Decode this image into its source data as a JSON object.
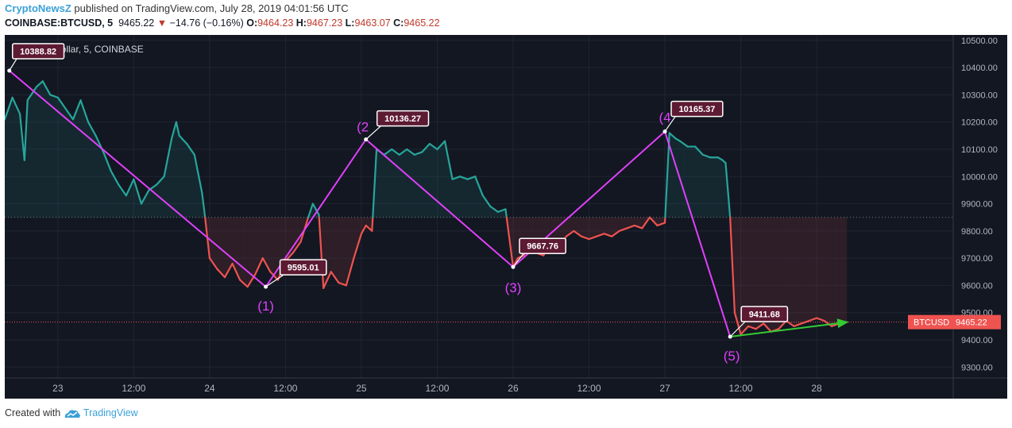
{
  "header": {
    "publisher": "CryptoNewsZ",
    "published_text": "published on TradingView.com, July 28, 2019 04:01:56 UTC",
    "symbol": "COINBASE:BTCUSD, 5",
    "last": "9465.22",
    "change": "−14.76 (−0.16%)",
    "o_label": "O:",
    "o_value": "9464.23",
    "h_label": "H:",
    "h_value": "9467.23",
    "l_label": "L:",
    "l_value": "9463.07",
    "c_label": "C:",
    "c_value": "9465.22"
  },
  "footer": {
    "created_with": "Created with",
    "brand": "TradingView"
  },
  "chart_data": {
    "type": "area",
    "legend_text": "BTC/U.S. Dollar, 5, COINBASE",
    "ylim": [
      9260,
      10520
    ],
    "y_ticks": [
      9300,
      9400,
      9500,
      9600,
      9700,
      9800,
      9900,
      10000,
      10100,
      10200,
      10300,
      10400,
      10500
    ],
    "y_tick_labels": [
      "9300.00",
      "9400.00",
      "9500.00",
      "9600.00",
      "9700.00",
      "9800.00",
      "9900.00",
      "10000.00",
      "10100.00",
      "10200.00",
      "10300.00",
      "10400.00",
      "10500.00"
    ],
    "x_ticks": [
      23,
      23.5,
      24,
      24.5,
      25,
      25.5,
      26,
      26.5,
      27,
      27.5,
      28
    ],
    "x_tick_labels": [
      "23",
      "12:00",
      "24",
      "12:00",
      "25",
      "12:00",
      "26",
      "12:00",
      "27",
      "12:00",
      "28"
    ],
    "baseline": 9850,
    "current_price": 9465.22,
    "current_label": "BTCUSD",
    "current_value_label": "9465.22",
    "colors": {
      "up": "#26a69a",
      "down": "#ef5350",
      "wave": "#e040fb",
      "trend": "#33cc33",
      "callout": "#5d1a33"
    },
    "series": [
      {
        "x": [
          22.63,
          22.65,
          22.7,
          22.75,
          22.78,
          22.8,
          22.86,
          22.9,
          22.95,
          23.0,
          23.05,
          23.1,
          23.15,
          23.2,
          23.25,
          23.3,
          23.35,
          23.4,
          23.45,
          23.5,
          23.55,
          23.6,
          23.65,
          23.7,
          23.75,
          23.78,
          23.8,
          23.85,
          23.9,
          23.95,
          23.97,
          24.0,
          24.05,
          24.1,
          24.15,
          24.2,
          24.25,
          24.3,
          24.35,
          24.4,
          24.45,
          24.5,
          24.55,
          24.6,
          24.65,
          24.68,
          24.72,
          24.75,
          24.8,
          24.85,
          24.9,
          24.95,
          25.0,
          25.03,
          25.07,
          25.1,
          25.15,
          25.2,
          25.25,
          25.3,
          25.35,
          25.4,
          25.45,
          25.5,
          25.55,
          25.6,
          25.65,
          25.7,
          25.75,
          25.8,
          25.85,
          25.9,
          25.95,
          26.0,
          26.03,
          26.07,
          26.1,
          26.15,
          26.2,
          26.25,
          26.3,
          26.35,
          26.4,
          26.45,
          26.5,
          26.55,
          26.6,
          26.65,
          26.7,
          26.75,
          26.8,
          26.85,
          26.9,
          26.95,
          27.0,
          27.03,
          27.07,
          27.1,
          27.15,
          27.2,
          27.25,
          27.3,
          27.35,
          27.38,
          27.4,
          27.43,
          27.46,
          27.5,
          27.55,
          27.6,
          27.65,
          27.7,
          27.75,
          27.8,
          27.85,
          27.9,
          27.95,
          28.0,
          28.05,
          28.1,
          28.15,
          28.2
        ],
        "y": [
          10270,
          10210,
          10290,
          10230,
          10060,
          10280,
          10330,
          10350,
          10300,
          10290,
          10250,
          10210,
          10280,
          10200,
          10150,
          10090,
          10020,
          9970,
          9930,
          9990,
          9900,
          9950,
          9970,
          10000,
          10140,
          10200,
          10150,
          10120,
          10080,
          9940,
          9850,
          9700,
          9660,
          9630,
          9680,
          9620,
          9595,
          9640,
          9700,
          9650,
          9620,
          9690,
          9720,
          9760,
          9850,
          9900,
          9860,
          9590,
          9650,
          9610,
          9600,
          9700,
          9790,
          9820,
          9800,
          10100,
          10080,
          10100,
          10080,
          10100,
          10080,
          10090,
          10120,
          10100,
          10130,
          9990,
          10000,
          9990,
          10000,
          9930,
          9890,
          9870,
          9880,
          9667,
          9700,
          9710,
          9740,
          9720,
          9710,
          9760,
          9740,
          9780,
          9800,
          9780,
          9770,
          9780,
          9790,
          9780,
          9800,
          9810,
          9820,
          9810,
          9850,
          9820,
          9830,
          10160,
          10140,
          10130,
          10110,
          10110,
          10080,
          10070,
          10070,
          10060,
          10050,
          9850,
          9500,
          9420,
          9450,
          9440,
          9460,
          9430,
          9440,
          9470,
          9450,
          9460,
          9470,
          9480,
          9470,
          9450,
          9460,
          9465.22
        ]
      }
    ],
    "waves": {
      "points": [
        {
          "x": 22.68,
          "y": 10388.82,
          "label": "10388.82",
          "wave": ""
        },
        {
          "x": 24.37,
          "y": 9595.01,
          "label": "9595.01",
          "wave": "(1)"
        },
        {
          "x": 25.03,
          "y": 10136.27,
          "label": "10136.27",
          "wave": "(2"
        },
        {
          "x": 26.0,
          "y": 9667.76,
          "label": "9667.76",
          "wave": "(3)"
        },
        {
          "x": 27.0,
          "y": 10165.37,
          "label": "10165.37",
          "wave": "(4"
        },
        {
          "x": 27.43,
          "y": 9411.68,
          "label": "9411.68",
          "wave": "(5)"
        }
      ],
      "trend": {
        "x": [
          27.43,
          28.2
        ],
        "y": [
          9411.68,
          9465
        ]
      }
    }
  }
}
